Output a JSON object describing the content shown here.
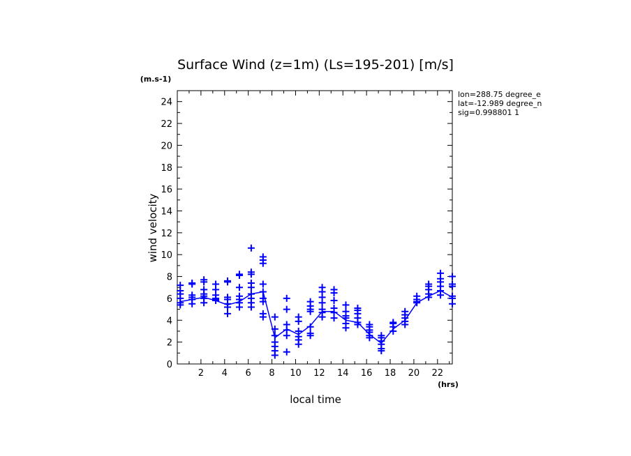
{
  "chart_data": {
    "type": "scatter",
    "title": "Surface Wind (z=1m) (Ls=195-201) [m/s]",
    "ylabel": "wind velocity",
    "yunit": "(m.s-1)",
    "xlabel": "local time",
    "xunit": "(hrs)",
    "xlim": [
      0,
      23.25
    ],
    "ylim": [
      0,
      25
    ],
    "xticks": [
      2,
      4,
      6,
      8,
      10,
      12,
      14,
      16,
      18,
      20,
      22
    ],
    "yticks": [
      0,
      2,
      4,
      6,
      8,
      10,
      12,
      14,
      16,
      18,
      20,
      22,
      24
    ],
    "info": [
      "lon=288.75 degree_e",
      "lat=-12.989 degree_n",
      "sig=0.998801 1"
    ],
    "color": "#0000ff",
    "grid": false,
    "mean_line": {
      "x": [
        0.25,
        1.25,
        2.25,
        3.25,
        4.25,
        5.25,
        6.25,
        7.25,
        8.25,
        9.25,
        10.25,
        11.25,
        12.25,
        13.25,
        14.25,
        15.25,
        16.25,
        17.25,
        18.25,
        19.25,
        20.25,
        21.25,
        22.25,
        23.25
      ],
      "y": [
        5.7,
        5.9,
        6.1,
        5.8,
        5.4,
        5.7,
        6.4,
        6.6,
        2.4,
        3.2,
        2.7,
        3.5,
        4.8,
        4.8,
        4.0,
        3.8,
        2.7,
        1.9,
        3.2,
        4.0,
        5.6,
        6.2,
        6.7,
        6.1
      ]
    },
    "samples": [
      {
        "x": 0.25,
        "y": [
          5.4,
          5.6,
          6.0,
          6.4,
          6.7,
          7.2
        ]
      },
      {
        "x": 1.25,
        "y": [
          5.5,
          5.9,
          6.1,
          6.3,
          7.3,
          7.4
        ]
      },
      {
        "x": 2.25,
        "y": [
          5.6,
          6.0,
          6.2,
          6.4,
          6.8,
          7.5,
          7.7
        ]
      },
      {
        "x": 3.25,
        "y": [
          5.8,
          5.9,
          6.0,
          6.3,
          6.8,
          7.3
        ]
      },
      {
        "x": 4.25,
        "y": [
          4.6,
          5.2,
          5.5,
          5.9,
          6.1,
          7.5,
          7.6
        ]
      },
      {
        "x": 5.25,
        "y": [
          5.2,
          5.6,
          5.9,
          6.2,
          7.0,
          8.1,
          8.2
        ]
      },
      {
        "x": 6.25,
        "y": [
          5.2,
          5.6,
          6.0,
          6.4,
          7.0,
          7.4,
          8.2,
          8.4,
          10.6
        ]
      },
      {
        "x": 7.25,
        "y": [
          4.3,
          4.6,
          5.7,
          6.0,
          6.6,
          7.3,
          9.2,
          9.5,
          9.8
        ]
      },
      {
        "x": 8.25,
        "y": [
          0.8,
          1.2,
          1.6,
          2.0,
          2.6,
          3.2,
          4.3
        ]
      },
      {
        "x": 9.25,
        "y": [
          1.1,
          2.6,
          3.1,
          3.6,
          5.0,
          6.0
        ]
      },
      {
        "x": 10.25,
        "y": [
          1.8,
          2.2,
          2.5,
          3.0,
          3.9,
          4.3
        ]
      },
      {
        "x": 11.25,
        "y": [
          2.6,
          2.8,
          3.4,
          4.8,
          5.0,
          5.3,
          5.7
        ]
      },
      {
        "x": 12.25,
        "y": [
          4.3,
          4.7,
          5.0,
          5.6,
          6.1,
          6.6,
          7.0
        ]
      },
      {
        "x": 13.25,
        "y": [
          4.2,
          4.7,
          5.1,
          5.8,
          6.5,
          6.8
        ]
      },
      {
        "x": 14.25,
        "y": [
          3.3,
          3.7,
          4.2,
          4.4,
          4.8,
          5.4
        ]
      },
      {
        "x": 15.25,
        "y": [
          3.6,
          3.8,
          4.2,
          4.6,
          4.9,
          5.1
        ]
      },
      {
        "x": 16.25,
        "y": [
          2.4,
          2.6,
          2.9,
          3.1,
          3.4,
          3.6
        ]
      },
      {
        "x": 17.25,
        "y": [
          1.2,
          1.4,
          1.8,
          2.1,
          2.4,
          2.6
        ]
      },
      {
        "x": 18.25,
        "y": [
          3.0,
          3.4,
          3.7,
          3.8
        ]
      },
      {
        "x": 19.25,
        "y": [
          3.6,
          3.9,
          4.2,
          4.5,
          4.8
        ]
      },
      {
        "x": 20.25,
        "y": [
          5.6,
          5.7,
          5.9,
          6.2
        ]
      },
      {
        "x": 21.25,
        "y": [
          6.1,
          6.4,
          6.8,
          7.1,
          7.3
        ]
      },
      {
        "x": 22.25,
        "y": [
          6.3,
          6.7,
          7.1,
          7.5,
          7.8,
          8.3
        ]
      },
      {
        "x": 23.25,
        "y": [
          5.5,
          6.0,
          6.2,
          7.1,
          7.3,
          8.0
        ]
      }
    ]
  }
}
